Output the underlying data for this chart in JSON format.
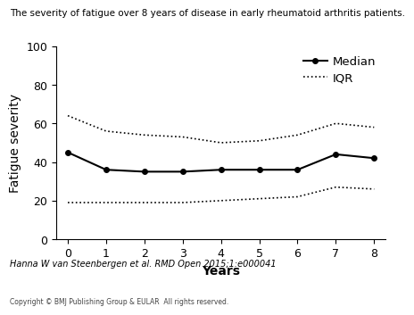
{
  "title": "The severity of fatigue over 8 years of disease in early rheumatoid arthritis patients.",
  "xlabel": "Years",
  "ylabel": "Fatigue severity",
  "years": [
    0,
    1,
    2,
    3,
    4,
    5,
    6,
    7,
    8
  ],
  "median": [
    45,
    36,
    35,
    35,
    36,
    36,
    36,
    44,
    42
  ],
  "iqr_upper": [
    64,
    56,
    54,
    53,
    50,
    51,
    54,
    60,
    58
  ],
  "iqr_lower": [
    19,
    19,
    19,
    19,
    20,
    21,
    22,
    27,
    26
  ],
  "ylim": [
    0,
    100
  ],
  "xlim": [
    -0.3,
    8.3
  ],
  "yticks": [
    0,
    20,
    40,
    60,
    80,
    100
  ],
  "xticks": [
    0,
    1,
    2,
    3,
    4,
    5,
    6,
    7,
    8
  ],
  "line_color": "#000000",
  "footnote": "Hanna W van Steenbergen et al. RMD Open 2015;1:e000041",
  "copyright": "Copyright © BMJ Publishing Group & EULAR  All rights reserved.",
  "rmd_box_color": "#1e7a45",
  "title_fontsize": 7.5,
  "axis_label_fontsize": 10,
  "tick_fontsize": 9,
  "legend_fontsize": 9.5,
  "footnote_fontsize": 7,
  "copyright_fontsize": 5.5
}
